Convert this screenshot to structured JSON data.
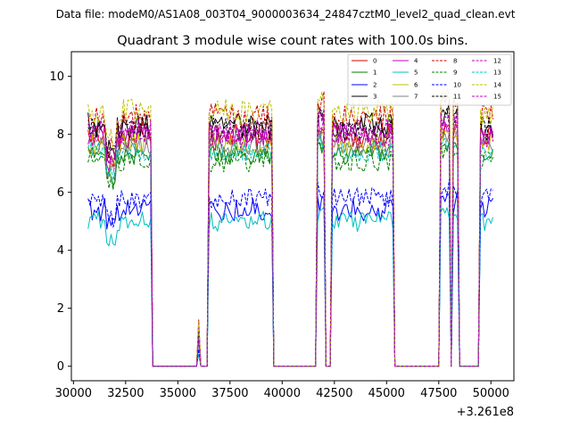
{
  "chart_data": {
    "type": "line",
    "suptitle": "Data file: modeM0/AS1A08_003T04_9000003634_24847cztM0_level2_quad_clean.evt",
    "title": "Quadrant 3 module wise count rates with 100.0s bins.",
    "xlabel": "",
    "ylabel": "",
    "x_offset_label": "+3.261e8",
    "xlim": [
      29900,
      51100
    ],
    "ylim": [
      -0.5,
      10.85
    ],
    "x_ticks": [
      30000,
      32500,
      35000,
      37500,
      40000,
      42500,
      45000,
      47500,
      50000
    ],
    "x_tick_labels": [
      "30000",
      "32500",
      "35000",
      "37500",
      "40000",
      "42500",
      "45000",
      "47500",
      "50000"
    ],
    "y_ticks": [
      0,
      2,
      4,
      6,
      8,
      10
    ],
    "y_tick_labels": [
      "0",
      "2",
      "4",
      "6",
      "8",
      "10"
    ],
    "bin_seconds": 100,
    "x_start": 30700,
    "x_end": 50100,
    "active_intervals": [
      [
        30700,
        33700
      ],
      [
        35950,
        36050
      ],
      [
        36500,
        39500
      ],
      [
        41700,
        42000
      ],
      [
        42350,
        45300
      ],
      [
        47600,
        48000
      ],
      [
        48200,
        48400
      ],
      [
        49500,
        50100
      ]
    ],
    "series": [
      {
        "name": "0",
        "color": "#d00000",
        "dash": "solid",
        "level": 7.9,
        "amp": 0.45
      },
      {
        "name": "1",
        "color": "#008000",
        "dash": "solid",
        "level": 7.3,
        "amp": 0.35
      },
      {
        "name": "2",
        "color": "#0000ff",
        "dash": "solid",
        "level": 5.4,
        "amp": 0.4
      },
      {
        "name": "3",
        "color": "#000000",
        "dash": "solid",
        "level": 8.3,
        "amp": 0.45
      },
      {
        "name": "4",
        "color": "#bf00bf",
        "dash": "solid",
        "level": 8.0,
        "amp": 0.4
      },
      {
        "name": "5",
        "color": "#00bfbf",
        "dash": "solid",
        "level": 5.0,
        "amp": 0.35
      },
      {
        "name": "6",
        "color": "#bfbf00",
        "dash": "solid",
        "level": 7.7,
        "amp": 0.4
      },
      {
        "name": "7",
        "color": "#808080",
        "dash": "solid",
        "level": 7.6,
        "amp": 0.35
      },
      {
        "name": "8",
        "color": "#d00000",
        "dash": "dashed",
        "level": 8.6,
        "amp": 0.45
      },
      {
        "name": "9",
        "color": "#008000",
        "dash": "dashed",
        "level": 7.1,
        "amp": 0.4
      },
      {
        "name": "10",
        "color": "#0000ff",
        "dash": "dashed",
        "level": 5.8,
        "amp": 0.35
      },
      {
        "name": "11",
        "color": "#000000",
        "dash": "dashed",
        "level": 8.2,
        "amp": 0.4
      },
      {
        "name": "12",
        "color": "#bf00bf",
        "dash": "dashed",
        "level": 7.9,
        "amp": 0.4
      },
      {
        "name": "13",
        "color": "#00bfbf",
        "dash": "dashed",
        "level": 7.4,
        "amp": 0.35
      },
      {
        "name": "14",
        "color": "#bfbf00",
        "dash": "dashed",
        "level": 8.8,
        "amp": 0.45
      },
      {
        "name": "15",
        "color": "#bf00bf",
        "dash": "dashed",
        "level": 8.1,
        "amp": 0.4
      }
    ],
    "legend_position": "top-right",
    "grid": false
  }
}
